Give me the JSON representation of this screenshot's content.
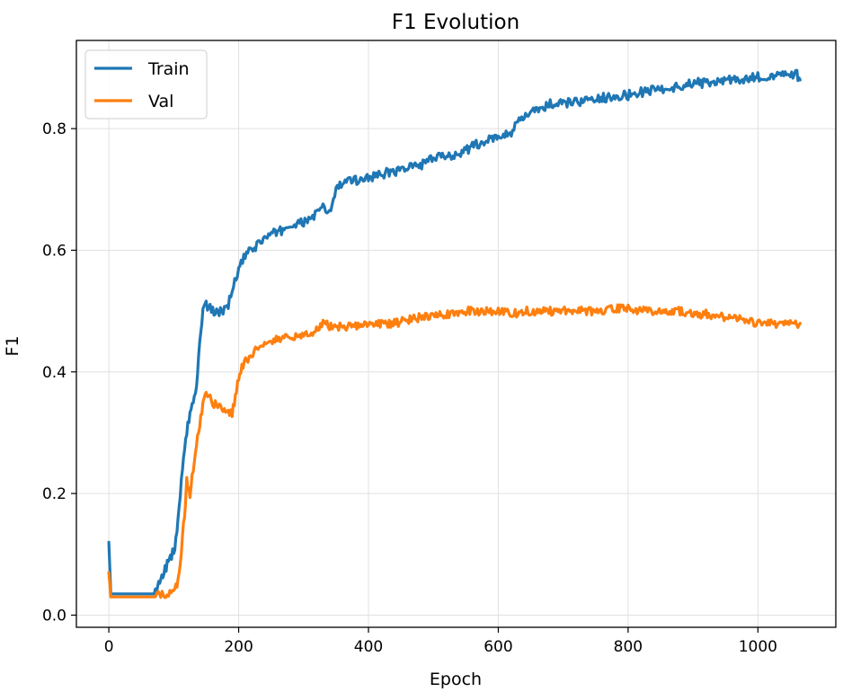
{
  "chart_data": {
    "type": "line",
    "title": "F1 Evolution",
    "xlabel": "Epoch",
    "ylabel": "F1",
    "xlim": [
      -50,
      1120
    ],
    "ylim": [
      -0.02,
      0.945
    ],
    "xticks": [
      0,
      200,
      400,
      600,
      800,
      1000
    ],
    "yticks": [
      0.0,
      0.2,
      0.4,
      0.6,
      0.8
    ],
    "ytick_labels": [
      "0.0",
      "0.2",
      "0.4",
      "0.6",
      "0.8"
    ],
    "grid": true,
    "legend_position": "top-left",
    "series": [
      {
        "name": "Train",
        "color": "#1f77b4",
        "x": [
          0,
          3,
          10,
          30,
          50,
          70,
          75,
          80,
          85,
          90,
          95,
          100,
          105,
          110,
          115,
          120,
          125,
          130,
          135,
          140,
          145,
          150,
          160,
          170,
          180,
          190,
          200,
          210,
          220,
          240,
          260,
          280,
          300,
          320,
          330,
          340,
          350,
          360,
          380,
          400,
          420,
          440,
          460,
          480,
          500,
          520,
          540,
          560,
          580,
          600,
          620,
          640,
          660,
          680,
          700,
          720,
          740,
          760,
          780,
          800,
          820,
          840,
          860,
          880,
          900,
          920,
          940,
          960,
          980,
          1000,
          1020,
          1040,
          1060,
          1065
        ],
        "values": [
          0.12,
          0.035,
          0.035,
          0.035,
          0.035,
          0.035,
          0.045,
          0.055,
          0.07,
          0.085,
          0.095,
          0.105,
          0.13,
          0.2,
          0.26,
          0.3,
          0.33,
          0.35,
          0.37,
          0.45,
          0.5,
          0.51,
          0.5,
          0.5,
          0.5,
          0.53,
          0.57,
          0.59,
          0.6,
          0.62,
          0.63,
          0.64,
          0.645,
          0.66,
          0.67,
          0.66,
          0.7,
          0.71,
          0.715,
          0.72,
          0.725,
          0.73,
          0.735,
          0.74,
          0.75,
          0.755,
          0.76,
          0.77,
          0.78,
          0.785,
          0.795,
          0.82,
          0.83,
          0.84,
          0.84,
          0.845,
          0.845,
          0.85,
          0.855,
          0.855,
          0.86,
          0.865,
          0.865,
          0.87,
          0.875,
          0.875,
          0.878,
          0.88,
          0.88,
          0.885,
          0.885,
          0.888,
          0.89,
          0.88
        ]
      },
      {
        "name": "Val",
        "color": "#ff7f0e",
        "x": [
          0,
          3,
          10,
          30,
          50,
          70,
          80,
          90,
          100,
          105,
          110,
          115,
          118,
          120,
          125,
          130,
          135,
          140,
          145,
          150,
          160,
          170,
          180,
          190,
          195,
          200,
          205,
          220,
          240,
          260,
          280,
          300,
          320,
          330,
          340,
          360,
          380,
          400,
          420,
          440,
          460,
          480,
          500,
          520,
          540,
          560,
          580,
          600,
          620,
          640,
          660,
          680,
          700,
          720,
          740,
          760,
          780,
          800,
          820,
          840,
          860,
          880,
          900,
          920,
          940,
          960,
          980,
          1000,
          1020,
          1040,
          1060,
          1065
        ],
        "values": [
          0.07,
          0.03,
          0.03,
          0.03,
          0.03,
          0.03,
          0.033,
          0.035,
          0.04,
          0.05,
          0.08,
          0.15,
          0.18,
          0.22,
          0.2,
          0.24,
          0.28,
          0.31,
          0.35,
          0.37,
          0.35,
          0.34,
          0.34,
          0.33,
          0.36,
          0.39,
          0.41,
          0.43,
          0.45,
          0.455,
          0.455,
          0.46,
          0.47,
          0.48,
          0.475,
          0.475,
          0.475,
          0.478,
          0.48,
          0.48,
          0.485,
          0.49,
          0.495,
          0.495,
          0.5,
          0.5,
          0.5,
          0.5,
          0.495,
          0.5,
          0.5,
          0.5,
          0.5,
          0.5,
          0.5,
          0.5,
          0.505,
          0.505,
          0.5,
          0.5,
          0.5,
          0.5,
          0.495,
          0.495,
          0.49,
          0.49,
          0.485,
          0.48,
          0.48,
          0.48,
          0.478,
          0.48
        ]
      }
    ]
  }
}
